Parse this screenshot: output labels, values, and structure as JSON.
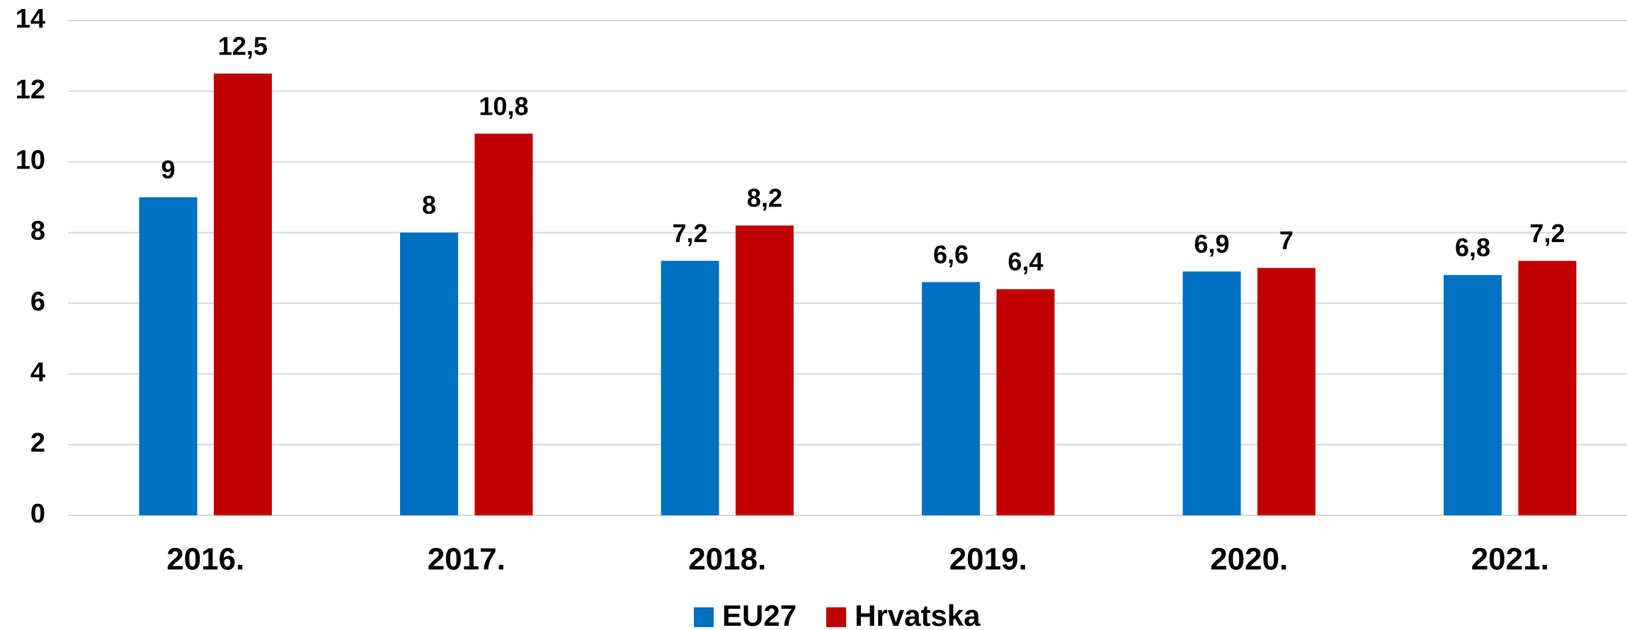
{
  "chart_data": {
    "type": "bar",
    "categories": [
      "2016.",
      "2017.",
      "2018.",
      "2019.",
      "2020.",
      "2021."
    ],
    "series": [
      {
        "name": "EU27",
        "color": "#0070c0",
        "values": [
          9,
          8,
          7.2,
          6.6,
          6.9,
          6.8
        ],
        "value_labels": [
          "9",
          "8",
          "7,2",
          "6,6",
          "6,9",
          "6,8"
        ]
      },
      {
        "name": "Hrvatska",
        "color": "#c00000",
        "values": [
          12.5,
          10.8,
          8.2,
          6.4,
          7,
          7.2
        ],
        "value_labels": [
          "12,5",
          "10,8",
          "8,2",
          "6,4",
          "7",
          "7,2"
        ]
      }
    ],
    "ylim": [
      0,
      14
    ],
    "yticks": [
      0,
      2,
      4,
      6,
      8,
      10,
      12,
      14
    ],
    "grid": true,
    "legend": "bottom"
  }
}
